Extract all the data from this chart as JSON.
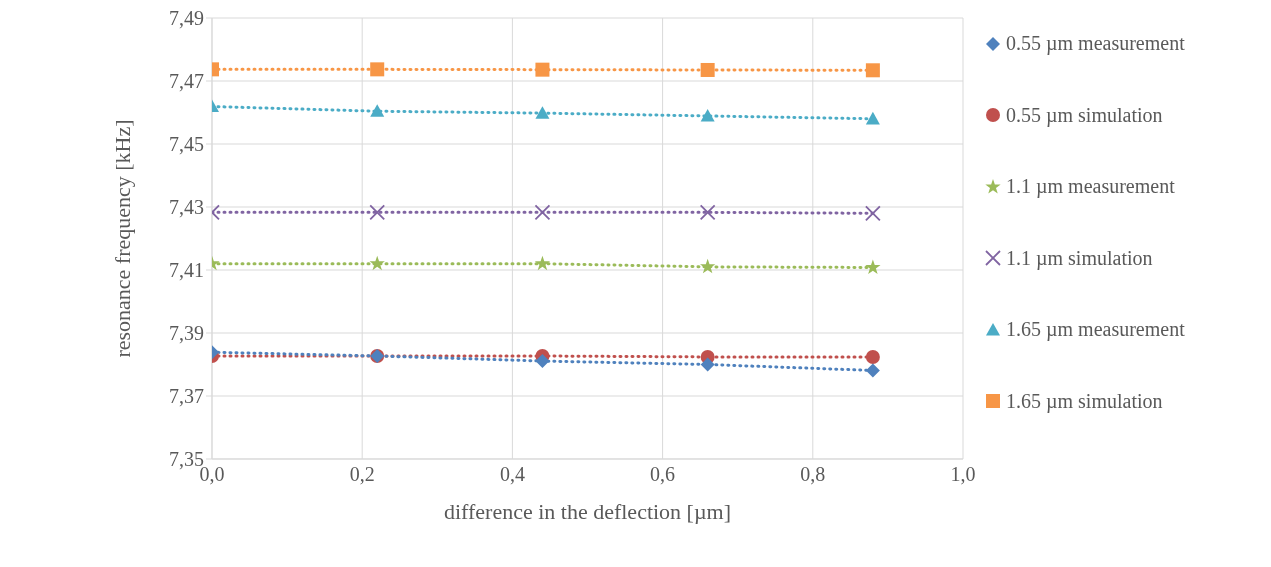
{
  "chart_data": {
    "type": "line",
    "xlabel": "difference in the deflection [µm]",
    "ylabel": "resonance frequency [kHz]",
    "x": [
      0,
      0.22,
      0.44,
      0.66,
      0.88
    ],
    "series": [
      {
        "name": "0.55 µm measurement",
        "color": "#4f81bd",
        "marker": "diamond",
        "values": [
          7.3839,
          7.3827,
          7.3811,
          7.38,
          7.3781
        ]
      },
      {
        "name": "0.55 µm simulation",
        "color": "#c0504d",
        "marker": "circle",
        "values": [
          7.3827,
          7.3827,
          7.3827,
          7.3824,
          7.3824
        ]
      },
      {
        "name": "1.1 µm measurement",
        "color": "#9bbb59",
        "marker": "star",
        "values": [
          7.412,
          7.412,
          7.412,
          7.411,
          7.4108
        ]
      },
      {
        "name": "1.1 µm simulation",
        "color": "#8064a2",
        "marker": "cross",
        "values": [
          7.4283,
          7.4283,
          7.4283,
          7.4283,
          7.428
        ]
      },
      {
        "name": "1.65 µm measurement",
        "color": "#4bacc6",
        "marker": "triangle",
        "values": [
          7.4619,
          7.4604,
          7.4598,
          7.4589,
          7.458
        ]
      },
      {
        "name": "1.65 µm simulation",
        "color": "#f79646",
        "marker": "square",
        "values": [
          7.4737,
          7.4737,
          7.4736,
          7.4735,
          7.4734
        ]
      }
    ],
    "line_style": "dotted",
    "xlim": [
      0,
      1
    ],
    "xticks": [
      {
        "value": 0,
        "label": "0,0"
      },
      {
        "value": 0.2,
        "label": "0,2"
      },
      {
        "value": 0.4,
        "label": "0,4"
      },
      {
        "value": 0.6,
        "label": "0,6"
      },
      {
        "value": 0.8,
        "label": "0,8"
      },
      {
        "value": 1,
        "label": "1,0"
      }
    ],
    "ylim": [
      7.35,
      7.49
    ],
    "yticks": [
      {
        "value": 7.35,
        "label": "7,35"
      },
      {
        "value": 7.37,
        "label": "7,37"
      },
      {
        "value": 7.39,
        "label": "7,39"
      },
      {
        "value": 7.41,
        "label": "7,41"
      },
      {
        "value": 7.43,
        "label": "7,43"
      },
      {
        "value": 7.45,
        "label": "7,45"
      },
      {
        "value": 7.47,
        "label": "7,47"
      },
      {
        "value": 7.49,
        "label": "7,49"
      }
    ],
    "grid": true,
    "legend": "right"
  }
}
